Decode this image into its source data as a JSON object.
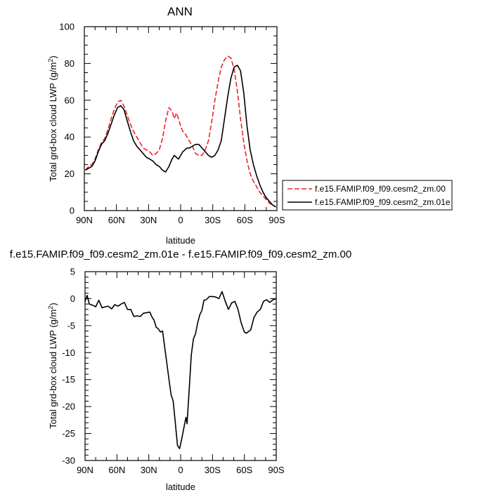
{
  "chart_data": [
    {
      "type": "line",
      "title": "ANN",
      "xlabel": "latitude",
      "ylabel": "Total grd-box cloud LWP (g/m²)",
      "ylabel_base": "Total grd-box cloud LWP (g/m",
      "ylabel_sup": "2",
      "ylabel_close": ")",
      "xlim": [
        90,
        -90
      ],
      "ylim": [
        0,
        100
      ],
      "x_ticks": [
        90,
        60,
        30,
        0,
        -30,
        -60,
        -90
      ],
      "x_tick_labels": [
        "90N",
        "60N",
        "30N",
        "0",
        "30S",
        "60S",
        "90S"
      ],
      "y_ticks": [
        0,
        20,
        40,
        60,
        80,
        100
      ],
      "y_tick_labels": [
        "0",
        "20",
        "40",
        "60",
        "80",
        "100"
      ],
      "grid": false,
      "legend_position": "right",
      "series": [
        {
          "name": "f.e15.FAMIP.f09_f09.cesm2_zm.00",
          "color": "#e8262c",
          "dash": "dashed",
          "x": [
            89,
            86,
            83,
            80,
            77,
            74,
            71,
            68,
            65,
            62,
            59,
            56,
            53,
            50,
            47,
            44,
            41,
            38,
            35,
            32,
            29,
            26,
            23,
            20,
            17,
            14,
            11,
            8,
            6,
            4,
            2,
            0,
            -2,
            -4,
            -6,
            -8,
            -11,
            -14,
            -17,
            -20,
            -23,
            -26,
            -29,
            -32,
            -35,
            -38,
            -41,
            -44,
            -47,
            -50,
            -53,
            -56,
            -59,
            -62,
            -65,
            -68,
            -71,
            -74,
            -77,
            -80,
            -83,
            -86,
            -89
          ],
          "y": [
            22,
            24,
            25,
            28,
            33,
            37,
            39,
            44,
            50,
            55,
            59,
            60,
            57,
            52,
            47,
            43,
            40,
            37,
            34,
            33,
            32,
            30,
            31,
            33,
            39,
            49,
            56,
            54,
            50,
            53,
            50,
            46,
            43,
            42,
            40,
            38,
            35,
            31,
            30,
            30,
            33,
            38,
            48,
            60,
            70,
            78,
            82,
            84,
            83,
            77,
            65,
            50,
            37,
            27,
            20,
            16,
            13,
            10,
            8,
            6,
            4,
            3,
            2
          ]
        },
        {
          "name": "f.e15.FAMIP.f09_f09.cesm2_zm.01e",
          "color": "#000000",
          "dash": "solid",
          "x": [
            89,
            86,
            83,
            80,
            77,
            74,
            71,
            68,
            65,
            62,
            59,
            56,
            53,
            50,
            47,
            44,
            41,
            38,
            35,
            32,
            29,
            26,
            23,
            20,
            17,
            14,
            11,
            8,
            6,
            4,
            2,
            0,
            -2,
            -4,
            -6,
            -8,
            -11,
            -14,
            -17,
            -20,
            -23,
            -26,
            -29,
            -32,
            -35,
            -38,
            -41,
            -44,
            -47,
            -50,
            -53,
            -56,
            -59,
            -62,
            -65,
            -68,
            -71,
            -74,
            -77,
            -80,
            -83,
            -86,
            -89
          ],
          "y": [
            22,
            23,
            24,
            27,
            32,
            36,
            38,
            42,
            47,
            52,
            56,
            57,
            55,
            49,
            43,
            38,
            35,
            33,
            31,
            29,
            28,
            27,
            25,
            24,
            22,
            21,
            24,
            28,
            30,
            29,
            28,
            30,
            32,
            33,
            34,
            34,
            35,
            36,
            36,
            34,
            32,
            30,
            29,
            30,
            33,
            38,
            50,
            62,
            72,
            78,
            79,
            76,
            64,
            46,
            33,
            25,
            19,
            14,
            10,
            7,
            5,
            3,
            2
          ]
        }
      ]
    },
    {
      "type": "line",
      "title": "f.e15.FAMIP.f09_f09.cesm2_zm.01e - f.e15.FAMIP.f09_f09.cesm2_zm.00",
      "xlabel": "latitude",
      "ylabel": "Total grd-box cloud LWP (g/m²)",
      "ylabel_base": "Total grd-box cloud LWP (g/m",
      "ylabel_sup": "2",
      "ylabel_close": ")",
      "xlim": [
        90,
        -90
      ],
      "ylim": [
        -30,
        5
      ],
      "x_ticks": [
        90,
        60,
        30,
        0,
        -30,
        -60,
        -90
      ],
      "x_tick_labels": [
        "90N",
        "60N",
        "30N",
        "0",
        "30S",
        "60S",
        "90S"
      ],
      "y_ticks": [
        -30,
        -25,
        -20,
        -15,
        -10,
        -5,
        0,
        5
      ],
      "y_tick_labels": [
        "-30",
        "-25",
        "-20",
        "-15",
        "-10",
        "-5",
        "0",
        "5"
      ],
      "grid": false,
      "series": [
        {
          "color": "#000000",
          "dash": "solid",
          "x": [
            90,
            88,
            86,
            83,
            80,
            77,
            74,
            71,
            68,
            65,
            62,
            59,
            56,
            53,
            50,
            47,
            44,
            41,
            38,
            35,
            32,
            29,
            27,
            25,
            23,
            21,
            19,
            17,
            15,
            13,
            11,
            9,
            7,
            5,
            3,
            1,
            -1,
            -2,
            -4,
            -5,
            -6,
            -8,
            -10,
            -12,
            -14,
            -16,
            -18,
            -20,
            -22,
            -24,
            -27,
            -30,
            -33,
            -36,
            -39,
            -42,
            -45,
            -48,
            -51,
            -54,
            -57,
            -60,
            -62,
            -64,
            -66,
            -69,
            -72,
            -75,
            -78,
            -81,
            -84,
            -87,
            -90
          ],
          "y": [
            -0.5,
            0.6,
            -1,
            -1.2,
            -1.5,
            -0.3,
            -1.7,
            -1.5,
            -1.4,
            -1.9,
            -1.1,
            -1.4,
            -1.0,
            -0.7,
            -2.0,
            -2.0,
            -3.3,
            -3.2,
            -3.3,
            -2.7,
            -2.6,
            -2.5,
            -3.4,
            -4.0,
            -5.3,
            -5.6,
            -6.2,
            -6.0,
            -9.0,
            -12.0,
            -15.0,
            -17.8,
            -19.0,
            -23.0,
            -27.2,
            -27.8,
            -26.0,
            -25.0,
            -23.0,
            -22.0,
            -23.2,
            -17.0,
            -10.5,
            -7.5,
            -6.5,
            -4.5,
            -3.0,
            -2.2,
            -0.3,
            -0.2,
            0.4,
            0.4,
            0.3,
            0.0,
            1.3,
            -0.5,
            -2.0,
            -0.8,
            -0.5,
            -2.0,
            -4.5,
            -6.2,
            -6.4,
            -6.1,
            -5.8,
            -3.5,
            -2.5,
            -2.0,
            -0.5,
            -0.2,
            -0.7,
            -0.2,
            0.0
          ]
        }
      ]
    }
  ]
}
